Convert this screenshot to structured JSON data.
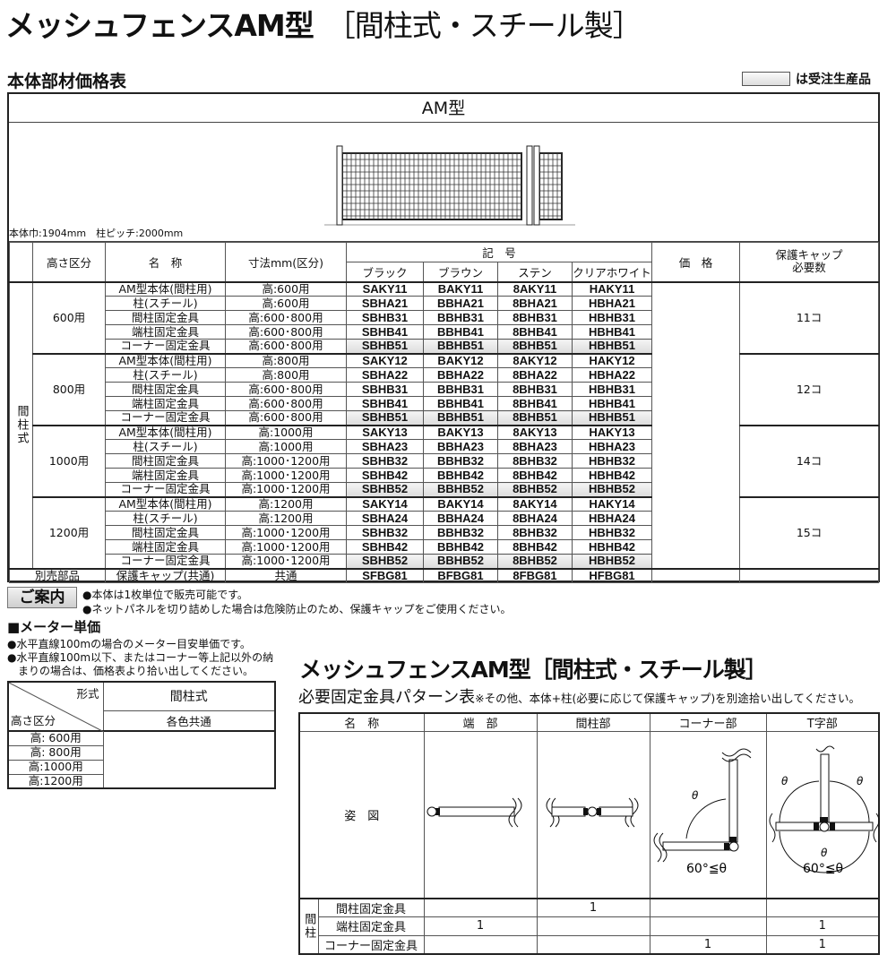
{
  "header": {
    "title": "メッシュフェンスAM型",
    "title_sub": "［間柱式・スチール製］"
  },
  "section1": {
    "title": "本体部材価格表",
    "legend_text": "は受注生産品",
    "legend_color": "#e4e4e4"
  },
  "main_table": {
    "model": "AM型",
    "caption": "本体巾:1904mm　柱ピッチ:2000mm",
    "headers": {
      "height": "高さ区分",
      "name": "名　称",
      "size": "寸法mm(区分)",
      "code": "記　号",
      "colors": [
        "ブラック",
        "ブラウン",
        "ステン",
        "クリアホワイト"
      ],
      "price": "価　格",
      "cap": "保護キャップ\n必要数"
    },
    "type_label": "間柱式",
    "groups": [
      {
        "label": "600用",
        "cap": "11コ",
        "rows": [
          {
            "name": "AM型本体(間柱用)",
            "size": "高:600用",
            "codes": [
              "SAKY11",
              "BAKY11",
              "8AKY11",
              "HAKY11"
            ]
          },
          {
            "name": "柱(スチール)",
            "size": "高:600用",
            "codes": [
              "SBHA21",
              "BBHA21",
              "8BHA21",
              "HBHA21"
            ]
          },
          {
            "name": "間柱固定金具",
            "size": "高:600･800用",
            "codes": [
              "SBHB31",
              "BBHB31",
              "8BHB31",
              "HBHB31"
            ]
          },
          {
            "name": "端柱固定金具",
            "size": "高:600･800用",
            "codes": [
              "SBHB41",
              "BBHB41",
              "8BHB41",
              "HBHB41"
            ]
          },
          {
            "name": "コーナー固定金具",
            "size": "高:600･800用",
            "codes": [
              "SBHB51",
              "BBHB51",
              "8BHB51",
              "HBHB51"
            ],
            "made_to_order": true
          }
        ]
      },
      {
        "label": "800用",
        "cap": "12コ",
        "rows": [
          {
            "name": "AM型本体(間柱用)",
            "size": "高:800用",
            "codes": [
              "SAKY12",
              "BAKY12",
              "8AKY12",
              "HAKY12"
            ]
          },
          {
            "name": "柱(スチール)",
            "size": "高:800用",
            "codes": [
              "SBHA22",
              "BBHA22",
              "8BHA22",
              "HBHA22"
            ]
          },
          {
            "name": "間柱固定金具",
            "size": "高:600･800用",
            "codes": [
              "SBHB31",
              "BBHB31",
              "8BHB31",
              "HBHB31"
            ]
          },
          {
            "name": "端柱固定金具",
            "size": "高:600･800用",
            "codes": [
              "SBHB41",
              "BBHB41",
              "8BHB41",
              "HBHB41"
            ]
          },
          {
            "name": "コーナー固定金具",
            "size": "高:600･800用",
            "codes": [
              "SBHB51",
              "BBHB51",
              "8BHB51",
              "HBHB51"
            ],
            "made_to_order": true
          }
        ]
      },
      {
        "label": "1000用",
        "cap": "14コ",
        "rows": [
          {
            "name": "AM型本体(間柱用)",
            "size": "高:1000用",
            "codes": [
              "SAKY13",
              "BAKY13",
              "8AKY13",
              "HAKY13"
            ]
          },
          {
            "name": "柱(スチール)",
            "size": "高:1000用",
            "codes": [
              "SBHA23",
              "BBHA23",
              "8BHA23",
              "HBHA23"
            ]
          },
          {
            "name": "間柱固定金具",
            "size": "高:1000･1200用",
            "codes": [
              "SBHB32",
              "BBHB32",
              "8BHB32",
              "HBHB32"
            ]
          },
          {
            "name": "端柱固定金具",
            "size": "高:1000･1200用",
            "codes": [
              "SBHB42",
              "BBHB42",
              "8BHB42",
              "HBHB42"
            ]
          },
          {
            "name": "コーナー固定金具",
            "size": "高:1000･1200用",
            "codes": [
              "SBHB52",
              "BBHB52",
              "8BHB52",
              "HBHB52"
            ],
            "made_to_order": true
          }
        ]
      },
      {
        "label": "1200用",
        "cap": "15コ",
        "rows": [
          {
            "name": "AM型本体(間柱用)",
            "size": "高:1200用",
            "codes": [
              "SAKY14",
              "BAKY14",
              "8AKY14",
              "HAKY14"
            ]
          },
          {
            "name": "柱(スチール)",
            "size": "高:1200用",
            "codes": [
              "SBHA24",
              "BBHA24",
              "8BHA24",
              "HBHA24"
            ]
          },
          {
            "name": "間柱固定金具",
            "size": "高:1000･1200用",
            "codes": [
              "SBHB32",
              "BBHB32",
              "8BHB32",
              "HBHB32"
            ]
          },
          {
            "name": "端柱固定金具",
            "size": "高:1000･1200用",
            "codes": [
              "SBHB42",
              "BBHB42",
              "8BHB42",
              "HBHB42"
            ]
          },
          {
            "name": "コーナー固定金具",
            "size": "高:1000･1200用",
            "codes": [
              "SBHB52",
              "BBHB52",
              "8BHB52",
              "HBHB52"
            ],
            "made_to_order": true
          }
        ]
      }
    ],
    "extra": {
      "label": "別売部品",
      "name": "保護キャップ(共通)",
      "size": "共通",
      "codes": [
        "SFBG81",
        "BFBG81",
        "8FBG81",
        "HFBG81"
      ]
    }
  },
  "guide": {
    "label": "ご案内",
    "notes": [
      "●本体は1枚単位で販売可能です。",
      "●ネットパネルを切り詰めした場合は危険防止のため、保護キャップをご使用ください。"
    ]
  },
  "meter": {
    "title": "■メーター単価",
    "notes": [
      "●水平直線100mの場合のメーター目安単価です。",
      "●水平直線100m以下、またはコーナー等上記以外の納",
      "　まりの場合は、価格表より拾い出してください。"
    ],
    "corner_top": "形式",
    "corner_bottom": "高さ区分",
    "col_type": "間柱式",
    "col_sub": "各色共通",
    "rows": [
      "高:  600用",
      "高:  800用",
      "高:1000用",
      "高:1200用"
    ]
  },
  "pattern": {
    "title": "メッシュフェンスAM型［間柱式・スチール製］",
    "subtitle": "必要固定金具パターン表",
    "subtitle_note": "※その他、本体+柱(必要に応じて保護キャップ)を別途拾い出してください。",
    "headers": [
      "名　称",
      "端　部",
      "間柱部",
      "コーナー部",
      "T字部"
    ],
    "figure_label": "姿　図",
    "angle_note": "60°≦θ",
    "theta": "θ",
    "group_label": "間柱",
    "rows": [
      {
        "name": "間柱固定金具",
        "values": [
          "",
          "1",
          "",
          ""
        ]
      },
      {
        "name": "端柱固定金具",
        "values": [
          "1",
          "",
          "",
          "1"
        ]
      },
      {
        "name": "コーナー固定金具",
        "values": [
          "",
          "",
          "1",
          "1"
        ]
      }
    ]
  }
}
